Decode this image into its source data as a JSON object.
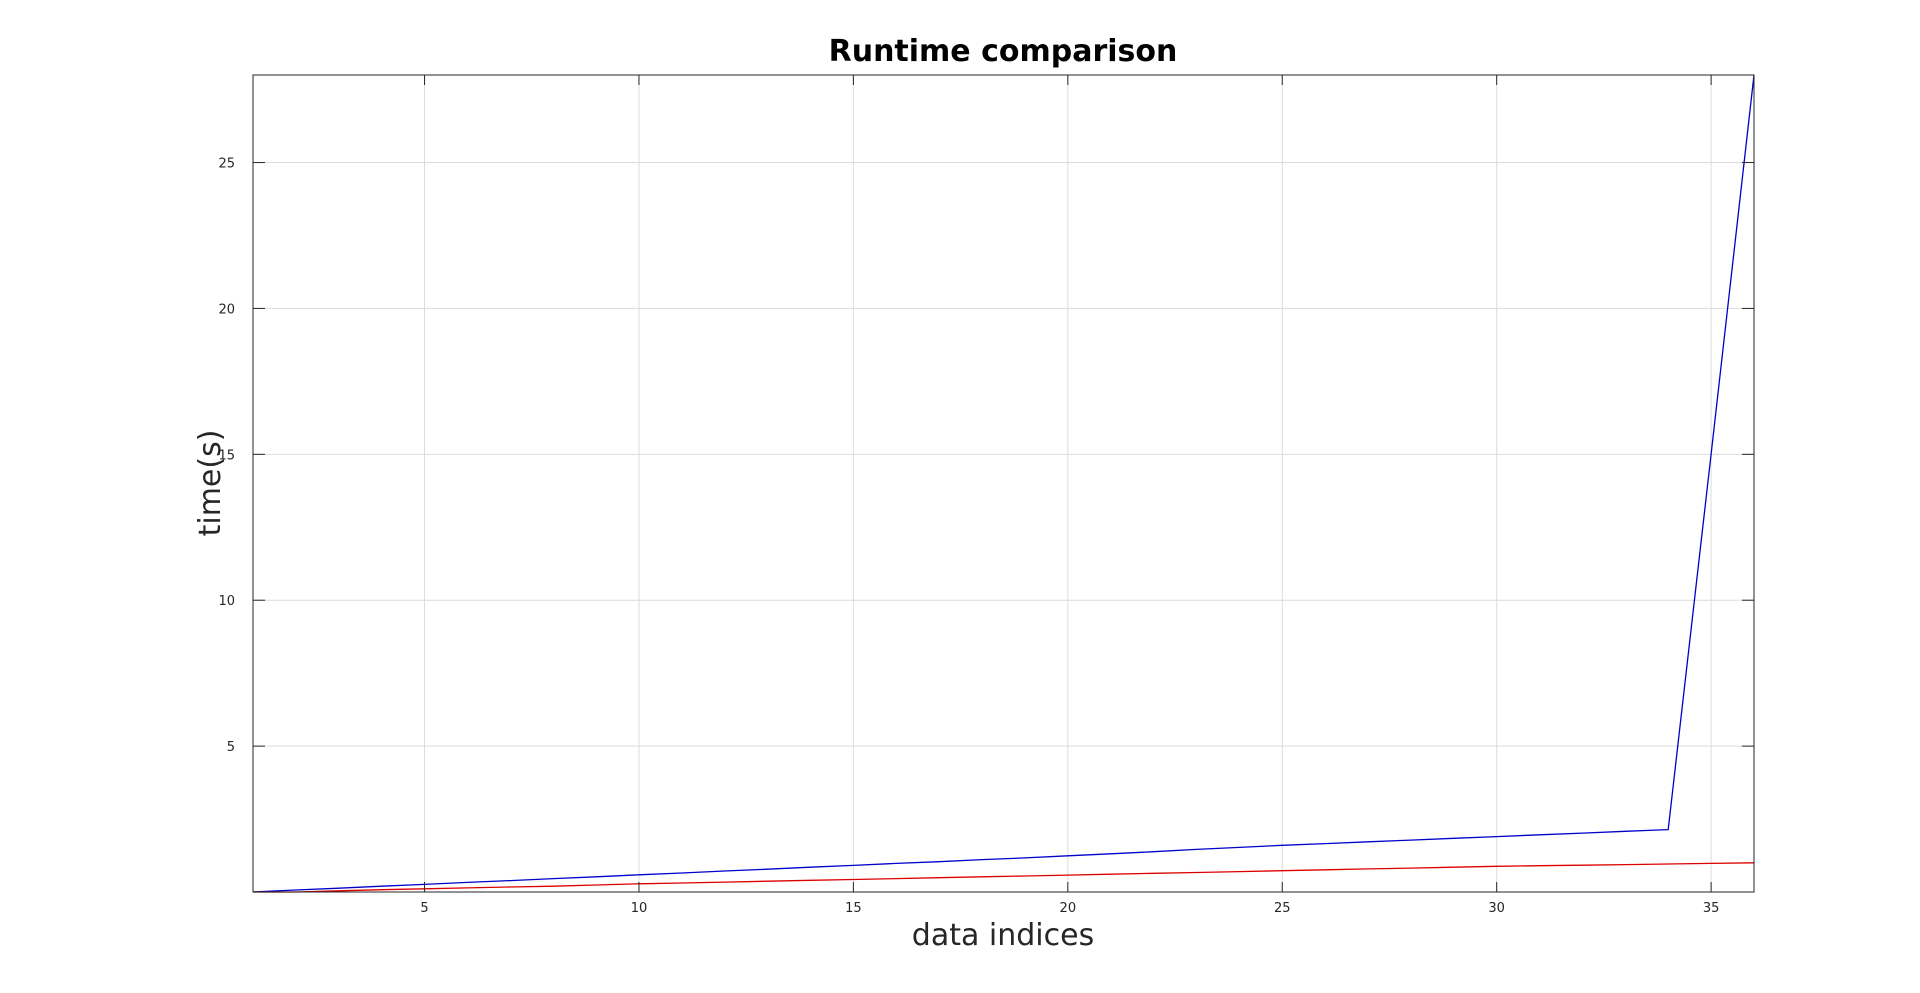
{
  "chart_data": {
    "type": "line",
    "title": "Runtime comparison",
    "xlabel": "data indices",
    "ylabel": "time(s)",
    "xlim": [
      1,
      36
    ],
    "ylim": [
      0,
      28
    ],
    "xticks": [
      5,
      10,
      15,
      20,
      25,
      30,
      35
    ],
    "yticks": [
      5,
      10,
      15,
      20,
      25
    ],
    "grid": true,
    "legend": "none",
    "series": [
      {
        "color": "#0000cc",
        "x": [
          1,
          2,
          3,
          4,
          5,
          6,
          7,
          8,
          9,
          10,
          11,
          12,
          13,
          14,
          15,
          16,
          17,
          18,
          19,
          20,
          21,
          22,
          23,
          24,
          25,
          26,
          27,
          28,
          29,
          30,
          31,
          32,
          33,
          34,
          35,
          36
        ],
        "y": [
          0.0,
          0.07,
          0.13,
          0.2,
          0.26,
          0.33,
          0.39,
          0.46,
          0.52,
          0.59,
          0.65,
          0.72,
          0.78,
          0.85,
          0.91,
          0.98,
          1.04,
          1.11,
          1.17,
          1.24,
          1.31,
          1.38,
          1.46,
          1.53,
          1.6,
          1.66,
          1.72,
          1.78,
          1.84,
          1.9,
          1.96,
          2.02,
          2.08,
          2.14,
          15.0,
          28.0
        ]
      },
      {
        "color": "#dd0000",
        "x": [
          1,
          2,
          3,
          4,
          5,
          6,
          7,
          8,
          9,
          10,
          11,
          12,
          13,
          14,
          15,
          16,
          17,
          18,
          19,
          20,
          21,
          22,
          23,
          24,
          25,
          26,
          27,
          28,
          29,
          30,
          31,
          32,
          33,
          34,
          35,
          36
        ],
        "y": [
          0.0,
          0.0,
          0.04,
          0.08,
          0.11,
          0.14,
          0.17,
          0.2,
          0.24,
          0.28,
          0.31,
          0.34,
          0.37,
          0.4,
          0.43,
          0.46,
          0.49,
          0.52,
          0.55,
          0.58,
          0.61,
          0.64,
          0.67,
          0.7,
          0.73,
          0.76,
          0.79,
          0.82,
          0.85,
          0.88,
          0.9,
          0.92,
          0.94,
          0.96,
          0.98,
          1.0
        ]
      }
    ]
  }
}
